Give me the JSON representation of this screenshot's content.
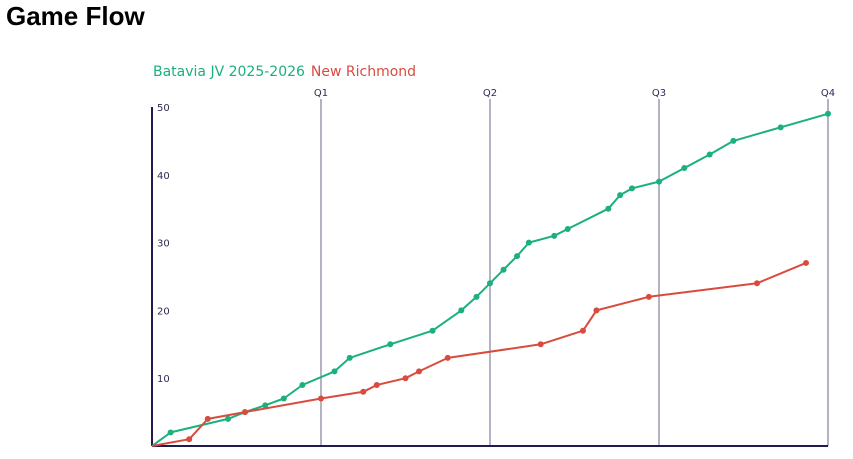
{
  "page": {
    "title": "Game Flow"
  },
  "chart_data": {
    "type": "line",
    "xlabel": "",
    "ylabel": "",
    "x_range": [
      0,
      4
    ],
    "ylim": [
      0,
      50
    ],
    "y_ticks": [
      10,
      20,
      30,
      40,
      50
    ],
    "quarter_markers": [
      {
        "x": 1,
        "label": "Q1"
      },
      {
        "x": 2,
        "label": "Q2"
      },
      {
        "x": 3,
        "label": "Q3"
      },
      {
        "x": 4,
        "label": "Q4"
      }
    ],
    "grid": "vertical lines at quarter boundaries",
    "legend_position": "top-left",
    "series": [
      {
        "name": "Batavia JV 2025-2026",
        "color": "#1bb07c",
        "points": [
          [
            0,
            0
          ],
          [
            0.11,
            2
          ],
          [
            0.45,
            4
          ],
          [
            0.55,
            5
          ],
          [
            0.67,
            6
          ],
          [
            0.78,
            7
          ],
          [
            0.89,
            9
          ],
          [
            1.08,
            11
          ],
          [
            1.17,
            13
          ],
          [
            1.41,
            15
          ],
          [
            1.66,
            17
          ],
          [
            1.83,
            20
          ],
          [
            1.92,
            22
          ],
          [
            2.0,
            24
          ],
          [
            2.08,
            26
          ],
          [
            2.16,
            28
          ],
          [
            2.23,
            30
          ],
          [
            2.38,
            31
          ],
          [
            2.46,
            32
          ],
          [
            2.7,
            35
          ],
          [
            2.77,
            37
          ],
          [
            2.84,
            38
          ],
          [
            3.0,
            39
          ],
          [
            3.15,
            41
          ],
          [
            3.3,
            43
          ],
          [
            3.44,
            45
          ],
          [
            3.72,
            47
          ],
          [
            4.0,
            49
          ]
        ]
      },
      {
        "name": "New Richmond",
        "color": "#d94b3f",
        "points": [
          [
            0,
            0
          ],
          [
            0.22,
            1
          ],
          [
            0.33,
            4
          ],
          [
            0.55,
            5
          ],
          [
            1.0,
            7
          ],
          [
            1.25,
            8
          ],
          [
            1.33,
            9
          ],
          [
            1.5,
            10
          ],
          [
            1.58,
            11
          ],
          [
            1.75,
            13
          ],
          [
            2.3,
            15
          ],
          [
            2.55,
            17
          ],
          [
            2.63,
            20
          ],
          [
            2.94,
            22
          ],
          [
            3.58,
            24
          ],
          [
            3.87,
            27
          ]
        ]
      }
    ]
  }
}
